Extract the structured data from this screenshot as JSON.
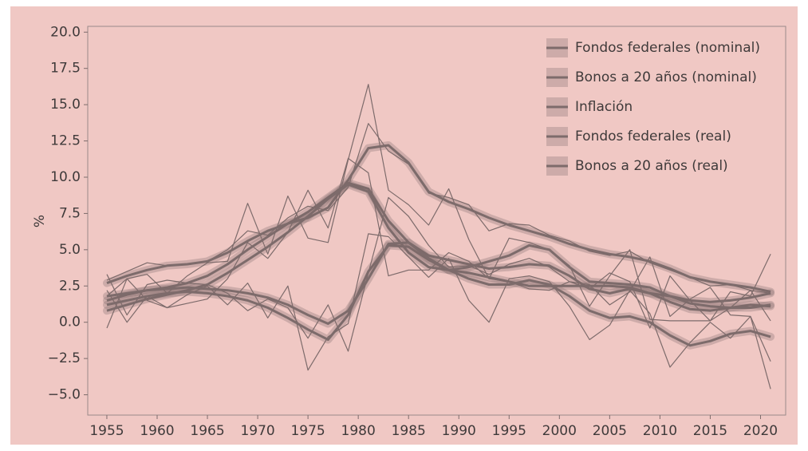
{
  "chart_data": {
    "type": "line",
    "y_label": "%",
    "x": [
      1955,
      1957,
      1959,
      1961,
      1963,
      1965,
      1967,
      1969,
      1971,
      1973,
      1975,
      1977,
      1979,
      1981,
      1983,
      1985,
      1987,
      1989,
      1991,
      1993,
      1995,
      1997,
      1999,
      2001,
      2003,
      2005,
      2007,
      2009,
      2011,
      2013,
      2015,
      2017,
      2019,
      2021
    ],
    "xlim": [
      1953.1,
      2022.5
    ],
    "xticks": [
      1955,
      1960,
      1965,
      1970,
      1975,
      1980,
      1985,
      1990,
      1995,
      2000,
      2005,
      2010,
      2015,
      2020
    ],
    "ylim": [
      -6.4,
      20.4
    ],
    "yticks": [
      {
        "value": -5,
        "label": "−5.0"
      },
      {
        "value": -2.5,
        "label": "−2.5"
      },
      {
        "value": 0,
        "label": "0.0"
      },
      {
        "value": 2.5,
        "label": "2.5"
      },
      {
        "value": 5,
        "label": "5.0"
      },
      {
        "value": 7.5,
        "label": "7.5"
      },
      {
        "value": 10,
        "label": "10.0"
      },
      {
        "value": 12.5,
        "label": "12.5"
      },
      {
        "value": 15,
        "label": "15.0"
      },
      {
        "value": 17.5,
        "label": "17.5"
      },
      {
        "value": 20,
        "label": "20.0"
      }
    ],
    "legend": "upper right",
    "series": [
      {
        "name": "Fondos federales (nominal)",
        "color": "#7d6b6b",
        "values": [
          1.8,
          3.0,
          3.3,
          2.0,
          3.2,
          4.1,
          4.2,
          8.2,
          4.7,
          8.7,
          5.8,
          5.5,
          11.2,
          16.4,
          9.1,
          8.1,
          6.7,
          9.2,
          5.7,
          3.0,
          5.8,
          5.5,
          5.0,
          3.9,
          1.1,
          3.2,
          5.0,
          0.2,
          0.1,
          0.1,
          0.1,
          1.0,
          2.2,
          0.1
        ],
        "trend": [
          1.5,
          1.9,
          2.2,
          2.4,
          2.7,
          3.2,
          4.0,
          5.0,
          5.9,
          6.8,
          7.6,
          8.6,
          9.6,
          9.2,
          7.0,
          5.5,
          4.6,
          4.3,
          4.0,
          3.7,
          3.8,
          4.0,
          3.9,
          3.2,
          2.3,
          2.0,
          2.3,
          2.0,
          1.4,
          0.9,
          0.8,
          1.0,
          1.2,
          1.1
        ]
      },
      {
        "name": "Bonos a 20 años (nominal)",
        "color": "#7d6b6b",
        "values": [
          2.9,
          3.5,
          4.1,
          3.9,
          4.0,
          4.2,
          5.0,
          6.3,
          6.0,
          7.2,
          8.0,
          7.7,
          9.3,
          13.7,
          11.8,
          10.9,
          8.9,
          8.6,
          8.1,
          6.3,
          6.8,
          6.7,
          6.0,
          5.6,
          4.9,
          4.6,
          4.9,
          4.1,
          3.6,
          3.1,
          2.5,
          2.6,
          2.2,
          2.0
        ],
        "trend": [
          2.7,
          3.2,
          3.6,
          3.9,
          4.0,
          4.2,
          4.8,
          5.6,
          6.3,
          6.8,
          7.2,
          7.9,
          9.8,
          12.0,
          12.2,
          11.0,
          9.0,
          8.3,
          7.8,
          7.2,
          6.7,
          6.3,
          5.9,
          5.4,
          5.0,
          4.7,
          4.5,
          4.2,
          3.7,
          3.1,
          2.8,
          2.6,
          2.4,
          2.1
        ]
      },
      {
        "name": "Inflación",
        "color": "#7d6b6b",
        "values": [
          -0.4,
          3.0,
          1.5,
          1.0,
          1.3,
          1.6,
          3.0,
          5.5,
          4.4,
          6.2,
          9.1,
          6.5,
          11.3,
          10.3,
          3.2,
          3.6,
          3.6,
          4.8,
          4.2,
          3.0,
          2.8,
          2.3,
          2.2,
          2.8,
          2.3,
          3.4,
          2.8,
          -0.4,
          3.2,
          1.5,
          0.1,
          2.1,
          1.8,
          4.7
        ],
        "trend": [
          0.8,
          1.2,
          1.6,
          1.9,
          2.2,
          2.6,
          3.4,
          4.3,
          5.2,
          6.2,
          7.3,
          8.5,
          9.5,
          9.0,
          6.5,
          4.8,
          3.8,
          3.6,
          3.4,
          3.1,
          2.8,
          2.5,
          2.5,
          2.5,
          2.5,
          2.5,
          2.4,
          2.0,
          1.8,
          1.5,
          1.4,
          1.5,
          1.7,
          2.0
        ]
      },
      {
        "name": "Fondos federales (real)",
        "color": "#7d6b6b",
        "values": [
          2.2,
          0.0,
          1.8,
          1.0,
          1.9,
          2.5,
          1.2,
          2.7,
          0.3,
          2.5,
          -3.3,
          -1.0,
          -0.1,
          6.1,
          5.9,
          4.5,
          3.1,
          4.4,
          1.5,
          0.0,
          3.0,
          3.2,
          2.8,
          1.1,
          -1.2,
          -0.2,
          2.2,
          0.6,
          -3.1,
          -1.4,
          0.0,
          -1.1,
          0.4,
          -4.6
        ],
        "trend": [
          1.2,
          1.5,
          1.8,
          2.0,
          2.1,
          2.0,
          1.8,
          1.5,
          1.0,
          0.3,
          -0.5,
          -1.2,
          0.5,
          3.5,
          5.3,
          5.2,
          4.3,
          3.6,
          3.0,
          2.6,
          2.6,
          2.9,
          2.6,
          1.8,
          0.8,
          0.3,
          0.4,
          0.0,
          -0.9,
          -1.6,
          -1.3,
          -0.8,
          -0.6,
          -1.0
        ]
      },
      {
        "name": "Bonos a 20 años (real)",
        "color": "#7d6b6b",
        "values": [
          3.3,
          0.5,
          2.6,
          2.9,
          2.7,
          2.6,
          2.0,
          0.8,
          1.6,
          1.0,
          -1.1,
          1.2,
          -2.0,
          3.4,
          8.6,
          7.3,
          5.3,
          3.8,
          3.9,
          3.3,
          4.0,
          4.4,
          3.8,
          2.8,
          2.6,
          1.2,
          2.1,
          4.5,
          0.4,
          1.6,
          2.4,
          0.5,
          0.4,
          -2.7
        ],
        "trend": [
          1.8,
          2.0,
          2.2,
          2.3,
          2.4,
          2.3,
          2.2,
          2.0,
          1.7,
          1.2,
          0.5,
          -0.1,
          0.8,
          3.0,
          5.4,
          5.5,
          4.4,
          3.6,
          3.8,
          4.2,
          4.6,
          5.3,
          5.0,
          3.8,
          2.8,
          2.7,
          2.6,
          2.4,
          1.8,
          1.3,
          1.1,
          1.0,
          1.0,
          1.2
        ]
      }
    ]
  }
}
